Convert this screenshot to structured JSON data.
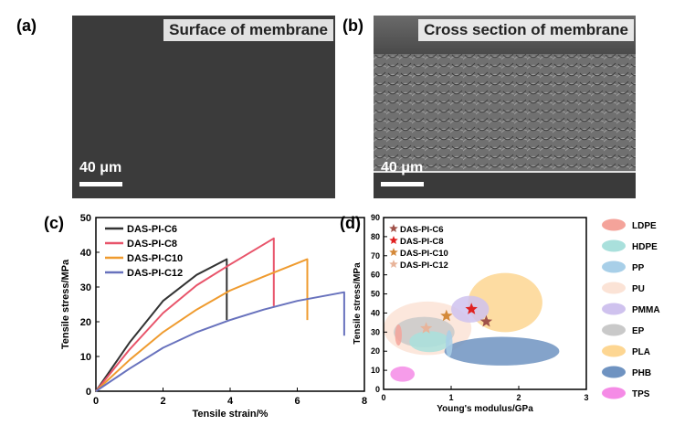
{
  "panel_a": {
    "label": "(a)",
    "title": "Surface of membrane",
    "scale": "40 μm"
  },
  "panel_b": {
    "label": "(b)",
    "title": "Cross section of membrane",
    "scale": "40 μm"
  },
  "chart_data": [
    {
      "panel": "(c)",
      "type": "line",
      "xlabel": "Tensile strain/%",
      "ylabel": "Tensile stress/MPa",
      "xlim": [
        0,
        8
      ],
      "ylim": [
        0,
        50
      ],
      "xticks": [
        "0",
        "2",
        "4",
        "6",
        "8"
      ],
      "yticks": [
        "0",
        "10",
        "20",
        "30",
        "40",
        "50"
      ],
      "legend_position": "top-left",
      "series": [
        {
          "name": "DAS-PI-C6",
          "color": "#333333",
          "x": [
            0,
            1,
            2,
            3,
            3.9,
            3.9
          ],
          "y": [
            0,
            14,
            26,
            33.5,
            38,
            20.5
          ]
        },
        {
          "name": "DAS-PI-C8",
          "color": "#e8546a",
          "x": [
            0,
            1,
            2,
            3,
            4,
            5.3,
            5.3
          ],
          "y": [
            0,
            12,
            22.5,
            30.5,
            36.5,
            44,
            24.5
          ]
        },
        {
          "name": "DAS-PI-C10",
          "color": "#ef9b2f",
          "x": [
            0,
            1,
            2,
            3,
            4,
            5,
            6.3,
            6.3
          ],
          "y": [
            0,
            9,
            17,
            23.5,
            29,
            33,
            38,
            20.5
          ]
        },
        {
          "name": "DAS-PI-C12",
          "color": "#6872bd",
          "x": [
            0,
            1,
            2,
            3,
            4,
            5,
            6,
            7.4,
            7.4
          ],
          "y": [
            0,
            6.5,
            12.5,
            17,
            20.5,
            23.5,
            26,
            28.5,
            16
          ]
        }
      ]
    },
    {
      "panel": "(d)",
      "type": "scatter",
      "xlabel": "Young's modulus/GPa",
      "ylabel": "Tensile stress/MPa",
      "xlim": [
        0,
        3
      ],
      "ylim": [
        0,
        90
      ],
      "xticks": [
        "0",
        "1",
        "2",
        "3"
      ],
      "yticks": [
        "0",
        "10",
        "20",
        "30",
        "40",
        "50",
        "60",
        "70",
        "80",
        "90"
      ],
      "points": [
        {
          "name": "DAS-PI-C6",
          "color": "#a0524a",
          "x": 1.52,
          "y": 35.5
        },
        {
          "name": "DAS-PI-C8",
          "color": "#e02020",
          "x": 1.3,
          "y": 42
        },
        {
          "name": "DAS-PI-C10",
          "color": "#d4893a",
          "x": 0.93,
          "y": 38.5
        },
        {
          "name": "DAS-PI-C12",
          "color": "#e8b49a",
          "x": 0.63,
          "y": 32
        }
      ],
      "regions": [
        {
          "name": "LDPE",
          "color": "#f4a39a",
          "cx": 0.22,
          "cy": 28.5,
          "rx": 0.05,
          "ry": 5.5
        },
        {
          "name": "HDPE",
          "color": "#a9e0dc",
          "cx": 0.68,
          "cy": 25,
          "rx": 0.3,
          "ry": 5.5
        },
        {
          "name": "PP",
          "color": "#a8cfe8",
          "cx": 0.97,
          "cy": 24,
          "rx": 0.05,
          "ry": 7
        },
        {
          "name": "PU",
          "color": "#fbe3d6",
          "cx": 0.65,
          "cy": 32,
          "rx": 0.65,
          "ry": 14
        },
        {
          "name": "PMMA",
          "color": "#cfc2ee",
          "cx": 1.28,
          "cy": 42,
          "rx": 0.28,
          "ry": 7
        },
        {
          "name": "EP",
          "color": "#c9c9c9",
          "cx": 0.6,
          "cy": 30,
          "rx": 0.45,
          "ry": 8
        },
        {
          "name": "PLA",
          "color": "#fdd692",
          "cx": 1.8,
          "cy": 45.5,
          "rx": 0.55,
          "ry": 15.5
        },
        {
          "name": "PHB",
          "color": "#6f93c1",
          "cx": 1.75,
          "cy": 20,
          "rx": 0.85,
          "ry": 7.5
        },
        {
          "name": "TPS",
          "color": "#f58be6",
          "cx": 0.28,
          "cy": 8,
          "rx": 0.18,
          "ry": 4
        }
      ]
    }
  ],
  "panel_c_label": "(c)",
  "panel_d_label": "(d)"
}
